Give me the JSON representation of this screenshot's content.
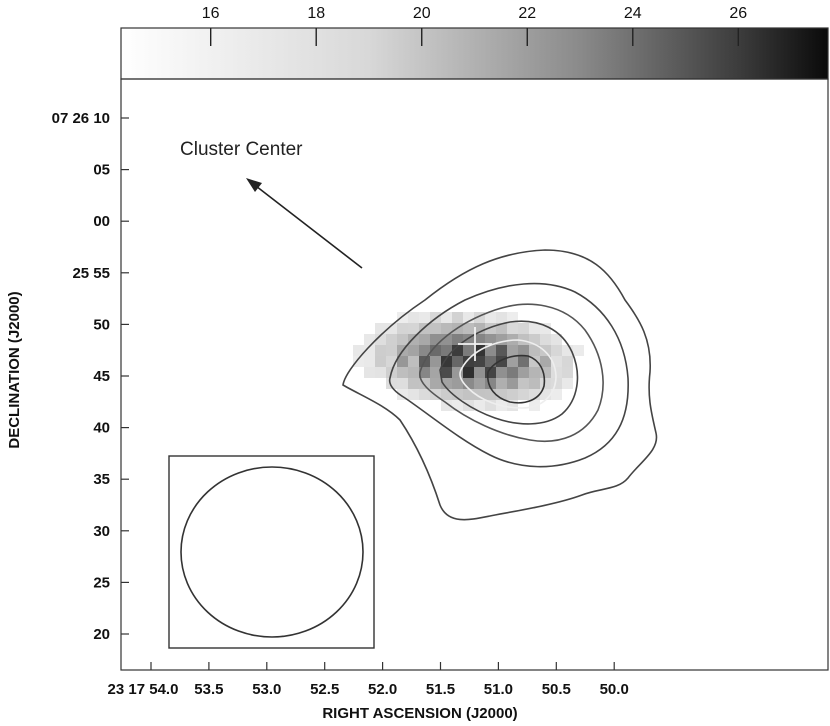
{
  "colorbar": {
    "ticks": [
      "16",
      "18",
      "20",
      "22",
      "24",
      "26"
    ],
    "range": [
      14.3,
      27.7
    ]
  },
  "axes": {
    "xlabel": "RIGHT ASCENSION (J2000)",
    "ylabel": "DECLINATION (J2000)",
    "xticks": [
      "23 17 54.0",
      "53.5",
      "53.0",
      "52.5",
      "52.0",
      "51.5",
      "51.0",
      "50.5",
      "50.0"
    ],
    "yticks": [
      "07 26 10",
      "05",
      "00",
      "25 55",
      "50",
      "45",
      "40",
      "35",
      "30",
      "25",
      "20"
    ]
  },
  "annotation": {
    "text": "Cluster Center"
  },
  "chart_data": {
    "type": "heatmap",
    "title": "",
    "xlabel": "RIGHT ASCENSION (J2000)",
    "ylabel": "DECLINATION (J2000)",
    "x_ticks": [
      "23 17 54.0",
      "53.5",
      "53.0",
      "52.5",
      "52.0",
      "51.5",
      "51.0",
      "50.5",
      "50.0"
    ],
    "y_ticks": [
      "07 26 10",
      "05",
      "00",
      "25 55",
      "50",
      "45",
      "40",
      "35",
      "30",
      "25",
      "20"
    ],
    "colorbar_ticks": [
      16,
      18,
      20,
      22,
      24,
      26
    ],
    "features": [
      "grayscale emission image",
      "contour overlay",
      "beam ellipse in inset box",
      "cross marker",
      "arrow pointing to cluster center"
    ]
  }
}
